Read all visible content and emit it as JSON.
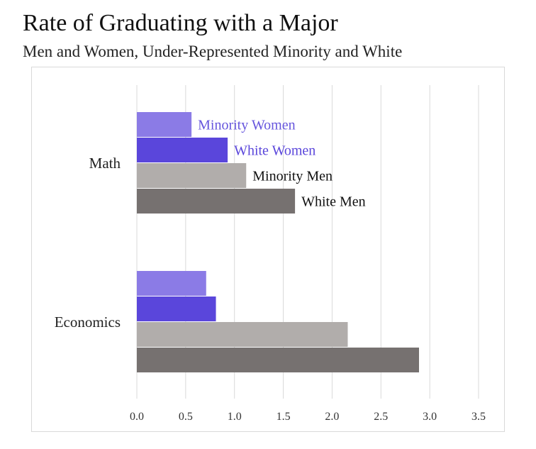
{
  "chart_data": {
    "type": "bar",
    "orientation": "horizontal",
    "title": "Rate of Graduating with a Major",
    "subtitle": "Men and Women, Under-Represented Minority and White",
    "categories": [
      "Math",
      "Economics"
    ],
    "series": [
      {
        "name": "Minority Women",
        "values": [
          0.56,
          0.71
        ],
        "color": "#8b7be6",
        "label_color": "#6655dd"
      },
      {
        "name": "White Women",
        "values": [
          0.93,
          0.81
        ],
        "color": "#5a46db",
        "label_color": "#5a46db"
      },
      {
        "name": "Minority Men",
        "values": [
          1.12,
          2.16
        ],
        "color": "#b1adab",
        "label_color": "#111111"
      },
      {
        "name": "White Men",
        "values": [
          1.62,
          2.89
        ],
        "color": "#767170",
        "label_color": "#111111"
      }
    ],
    "series_labels_on_category": "Math",
    "xlim": [
      0,
      3.5
    ],
    "xticks": [
      "0.0",
      "0.5",
      "1.0",
      "1.5",
      "2.0",
      "2.5",
      "3.0",
      "3.5"
    ],
    "xlabel": "",
    "ylabel": "",
    "grid": "vertical",
    "legend": "none"
  }
}
